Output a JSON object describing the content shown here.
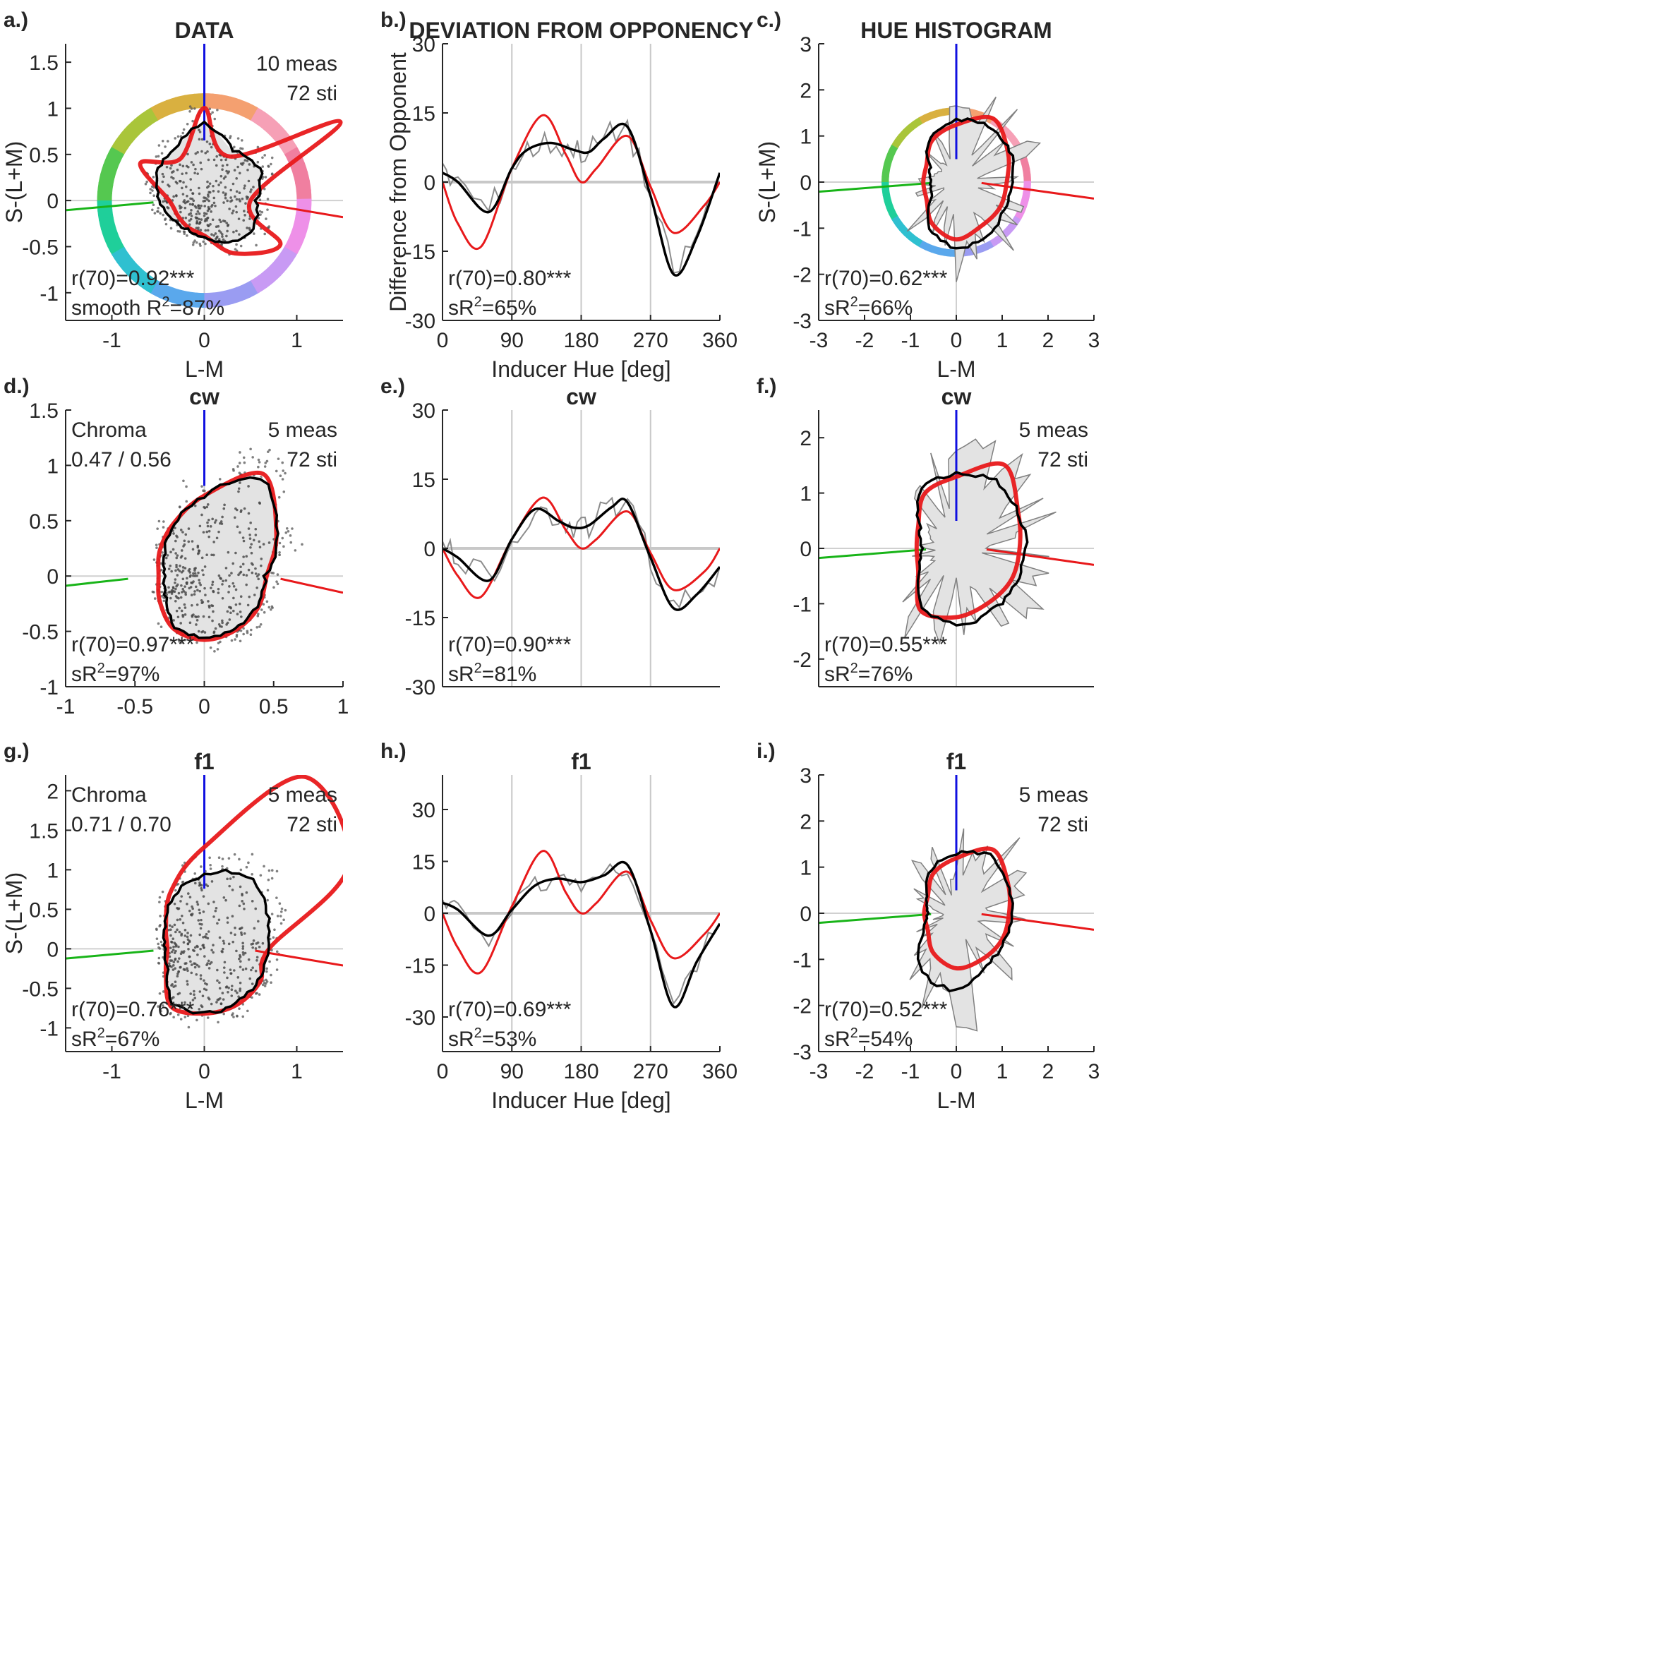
{
  "figure": {
    "panels": [
      {
        "id": "a",
        "letter": "a.)",
        "title": "DATA",
        "type": "polar",
        "xlabel": "L-M",
        "ylabel": "S-(L+M)",
        "xticks": [
          "-1",
          "0",
          "1"
        ],
        "yticks": [
          "-1",
          "-0.5",
          "0",
          "0.5",
          "1",
          "1.5"
        ],
        "meas": "10 meas",
        "sti": "72 sti",
        "chroma_label": "",
        "chroma_values": "",
        "stat1": "r(70)=0.92***",
        "stat2_prefix": "smooth R",
        "stat2_suffix": "=87%"
      },
      {
        "id": "b",
        "letter": "b.)",
        "title": "DEVIATION FROM OPPONENCY",
        "type": "deviation",
        "xlabel": "Inducer Hue [deg]",
        "ylabel": "Difference from Opponent",
        "xticks": [
          "0",
          "90",
          "180",
          "270",
          "360"
        ],
        "yticks": [
          "-30",
          "-15",
          "0",
          "15",
          "30"
        ],
        "stat1": "r(70)=0.80***",
        "stat2_prefix": "sR",
        "stat2_suffix": "=65%"
      },
      {
        "id": "c",
        "letter": "c.)",
        "title": "HUE HISTOGRAM",
        "type": "histogram",
        "xlabel": "L-M",
        "ylabel": "S-(L+M)",
        "xticks": [
          "-3",
          "-2",
          "-1",
          "0",
          "1",
          "2",
          "3"
        ],
        "yticks": [
          "-3",
          "-2",
          "-1",
          "0",
          "1",
          "2",
          "3"
        ],
        "meas": "",
        "sti": "",
        "stat1": "r(70)=0.62***",
        "stat2_prefix": "sR",
        "stat2_suffix": "=66%"
      },
      {
        "id": "d",
        "letter": "d.)",
        "title": "cw",
        "type": "polar",
        "xlabel": "",
        "ylabel": "",
        "xticks": [
          "-1",
          "-0.5",
          "0",
          "0.5",
          "1"
        ],
        "yticks": [
          "-1",
          "-0.5",
          "0",
          "0.5",
          "1",
          "1.5"
        ],
        "meas": "5 meas",
        "sti": "72 sti",
        "chroma_label": "Chroma",
        "chroma_values": "0.47 / 0.56",
        "stat1": "r(70)=0.97***",
        "stat2_prefix": "sR",
        "stat2_suffix": "=97%"
      },
      {
        "id": "e",
        "letter": "e.)",
        "title": "cw",
        "type": "deviation",
        "xlabel": "",
        "ylabel": "",
        "xticks": [],
        "yticks": [
          "-30",
          "-15",
          "0",
          "15",
          "30"
        ],
        "stat1": "r(70)=0.90***",
        "stat2_prefix": "sR",
        "stat2_suffix": "=81%"
      },
      {
        "id": "f",
        "letter": "f.)",
        "title": "cw",
        "type": "histogram",
        "xlabel": "",
        "ylabel": "",
        "xticks": [],
        "yticks": [
          "-2",
          "-1",
          "0",
          "1",
          "2"
        ],
        "meas": "5 meas",
        "sti": "72 sti",
        "stat1": "r(70)=0.55***",
        "stat2_prefix": "sR",
        "stat2_suffix": "=76%"
      },
      {
        "id": "g",
        "letter": "g.)",
        "title": "f1",
        "type": "polar",
        "xlabel": "L-M",
        "ylabel": "S-(L+M)",
        "xticks": [
          "-1",
          "0",
          "1"
        ],
        "yticks": [
          "-1",
          "-0.5",
          "0",
          "0.5",
          "1",
          "1.5",
          "2"
        ],
        "meas": "5 meas",
        "sti": "72 sti",
        "chroma_label": "Chroma",
        "chroma_values": "0.71 / 0.70",
        "stat1": "r(70)=0.76***",
        "stat2_prefix": "sR",
        "stat2_suffix": "=67%"
      },
      {
        "id": "h",
        "letter": "h.)",
        "title": "f1",
        "type": "deviation",
        "xlabel": "Inducer Hue [deg]",
        "ylabel": "",
        "xticks": [
          "0",
          "90",
          "180",
          "270",
          "360"
        ],
        "yticks": [
          "-30",
          "-15",
          "0",
          "15",
          "30"
        ],
        "stat1": "r(70)=0.69***",
        "stat2_prefix": "sR",
        "stat2_suffix": "=53%"
      },
      {
        "id": "i",
        "letter": "i.)",
        "title": "f1",
        "type": "histogram",
        "xlabel": "L-M",
        "ylabel": "",
        "xticks": [
          "-3",
          "-2",
          "-1",
          "0",
          "1",
          "2",
          "3"
        ],
        "yticks": [
          "-3",
          "-2",
          "-1",
          "0",
          "1",
          "2",
          "3"
        ],
        "meas": "5 meas",
        "sti": "72 sti",
        "stat1": "r(70)=0.52***",
        "stat2_prefix": "sR",
        "stat2_suffix": "=54%"
      }
    ]
  },
  "chart_data": [
    {
      "panel": "a",
      "type": "scatter",
      "title": "DATA",
      "xlabel": "L-M",
      "ylabel": "S-(L+M)",
      "xlim": [
        -1.5,
        1.5
      ],
      "ylim": [
        -1.3,
        1.7
      ],
      "series": [
        {
          "kind": "red-model-outline",
          "values": [
            0.5,
            1.7,
            0.55,
            1.0,
            0.52,
            0.8,
            0.38,
            0.33,
            0.34,
            0.38,
            0.66,
            0.95
          ],
          "note": ""
        },
        {
          "kind": "black-data-outline",
          "values": [
            0.56,
            0.7,
            0.62,
            0.83,
            0.64,
            0.59,
            0.48,
            0.4,
            0.36,
            0.4,
            0.52,
            0.62
          ]
        }
      ],
      "stimulus_ring_radius": 1.08,
      "cone_axes": {
        "s_axis_top": 1.7,
        "lm_axis_angle_deg": -5
      }
    },
    {
      "panel": "b",
      "type": "line",
      "xlabel": "Inducer Hue [deg]",
      "ylabel": "Difference from Opponent",
      "xlim": [
        0,
        360
      ],
      "ylim": [
        -30,
        30
      ],
      "series": [
        {
          "name": "",
          "kind": "model (red)",
          "x": [
            0,
            20,
            50,
            90,
            130,
            160,
            180,
            200,
            240,
            270,
            300,
            340,
            360
          ],
          "values": [
            0,
            -9,
            -14,
            3,
            14.5,
            6,
            0,
            3,
            10,
            -1,
            -11,
            -5,
            0
          ]
        },
        {
          "name": "",
          "kind": "smoothed data (black)",
          "x": [
            0,
            20,
            60,
            90,
            110,
            140,
            170,
            190,
            210,
            240,
            270,
            300,
            330,
            360
          ],
          "values": [
            2,
            0,
            -6.5,
            3,
            7,
            8.5,
            7,
            6.5,
            9.5,
            12,
            -3,
            -20,
            -12,
            2
          ]
        }
      ]
    },
    {
      "panel": "c",
      "type": "scatter",
      "title": "HUE HISTOGRAM",
      "xlabel": "L-M",
      "ylabel": "S-(L+M)",
      "xlim": [
        -3,
        3
      ],
      "ylim": [
        -3,
        3
      ],
      "series": [
        {
          "kind": "red-model-outline",
          "values": [
            1.1,
            1.3,
            1.6,
            1.25,
            1.05,
            0.75,
            0.72,
            0.75,
            1.05,
            1.25,
            1.1,
            1.1
          ]
        },
        {
          "kind": "black-data-outline",
          "values": [
            1.2,
            1.35,
            1.4,
            1.35,
            1.15,
            0.65,
            0.55,
            0.6,
            1.15,
            1.45,
            1.35,
            1.2
          ]
        }
      ],
      "stimulus_ring_radius": 1.55
    },
    {
      "panel": "d",
      "type": "scatter",
      "title": "cw",
      "xlim": [
        -1,
        1
      ],
      "ylim": [
        -1,
        1.5
      ],
      "series": [
        {
          "kind": "red-model-outline",
          "values": [
            0.45,
            0.6,
            0.85,
            0.58,
            0.44,
            0.37,
            0.33,
            0.37,
            0.44,
            0.46,
            0.45,
            0.45
          ]
        },
        {
          "kind": "black-data-outline",
          "values": [
            0.44,
            0.6,
            0.82,
            0.57,
            0.43,
            0.33,
            0.28,
            0.32,
            0.42,
            0.44,
            0.44,
            0.44
          ]
        }
      ]
    },
    {
      "panel": "e",
      "type": "line",
      "xlim": [
        0,
        360
      ],
      "ylim": [
        -30,
        30
      ],
      "series": [
        {
          "name": "",
          "kind": "model (red)",
          "x": [
            0,
            20,
            50,
            90,
            130,
            160,
            180,
            200,
            240,
            270,
            300,
            340,
            360
          ],
          "values": [
            0,
            -6,
            -10.5,
            2,
            11,
            4,
            0,
            2,
            8,
            -1,
            -9,
            -5,
            0
          ]
        },
        {
          "name": "",
          "kind": "smoothed data (black)",
          "x": [
            0,
            20,
            60,
            90,
            120,
            150,
            170,
            190,
            220,
            240,
            270,
            300,
            330,
            360
          ],
          "values": [
            0,
            -2,
            -7,
            2,
            8.5,
            6,
            4.5,
            5,
            9,
            10,
            -2,
            -13,
            -10,
            -4
          ]
        }
      ]
    },
    {
      "panel": "f",
      "type": "scatter",
      "title": "cw",
      "xlim": [
        -2.5,
        2.5
      ],
      "ylim": [
        -2.5,
        2.5
      ],
      "series": [
        {
          "kind": "red-model-outline",
          "values": [
            1.15,
            1.3,
            1.75,
            1.3,
            1.15,
            0.8,
            0.72,
            0.8,
            1.3,
            1.25,
            1.15,
            1.15
          ]
        },
        {
          "kind": "black-data-outline",
          "values": [
            1.25,
            1.3,
            1.42,
            1.35,
            1.25,
            0.75,
            0.62,
            0.75,
            1.25,
            1.4,
            1.3,
            1.25
          ]
        }
      ]
    },
    {
      "panel": "g",
      "type": "scatter",
      "title": "f1",
      "xlim": [
        -1.5,
        1.5
      ],
      "ylim": [
        -1.3,
        2.2
      ],
      "series": [
        {
          "kind": "red-model-outline",
          "values": [
            0.7,
            1.8,
            2.15,
            1.1,
            0.72,
            0.48,
            0.4,
            0.48,
            0.72,
            0.7,
            0.7,
            0.7
          ]
        },
        {
          "kind": "black-data-outline",
          "values": [
            0.68,
            0.78,
            0.92,
            0.8,
            0.66,
            0.48,
            0.42,
            0.45,
            0.68,
            0.7,
            0.68,
            0.68
          ]
        }
      ]
    },
    {
      "panel": "h",
      "type": "line",
      "xlabel": "Inducer Hue [deg]",
      "xlim": [
        0,
        360
      ],
      "ylim": [
        -40,
        40
      ],
      "series": [
        {
          "name": "",
          "kind": "model (red)",
          "x": [
            0,
            20,
            50,
            90,
            130,
            160,
            180,
            200,
            240,
            270,
            300,
            340,
            360
          ],
          "values": [
            0,
            -10,
            -17,
            2,
            18,
            6,
            0,
            3,
            12,
            -2,
            -13,
            -6,
            0
          ]
        },
        {
          "name": "",
          "kind": "smoothed data (black)",
          "x": [
            0,
            20,
            60,
            90,
            120,
            150,
            180,
            210,
            240,
            270,
            300,
            330,
            360
          ],
          "values": [
            3,
            1,
            -6.5,
            1,
            8,
            10,
            9,
            11,
            14,
            -5,
            -27,
            -14,
            -3
          ]
        }
      ]
    },
    {
      "panel": "i",
      "type": "scatter",
      "title": "f1",
      "xlabel": "L-M",
      "xlim": [
        -3,
        3
      ],
      "ylim": [
        -3,
        3
      ],
      "series": [
        {
          "kind": "red-model-outline",
          "values": [
            1.15,
            1.3,
            1.6,
            1.2,
            1.0,
            0.72,
            0.7,
            0.72,
            1.0,
            1.2,
            1.15,
            1.15
          ]
        },
        {
          "kind": "black-data-outline",
          "values": [
            1.2,
            1.3,
            1.45,
            1.3,
            1.1,
            0.75,
            0.6,
            0.8,
            1.5,
            1.7,
            1.3,
            1.2
          ]
        }
      ]
    }
  ]
}
